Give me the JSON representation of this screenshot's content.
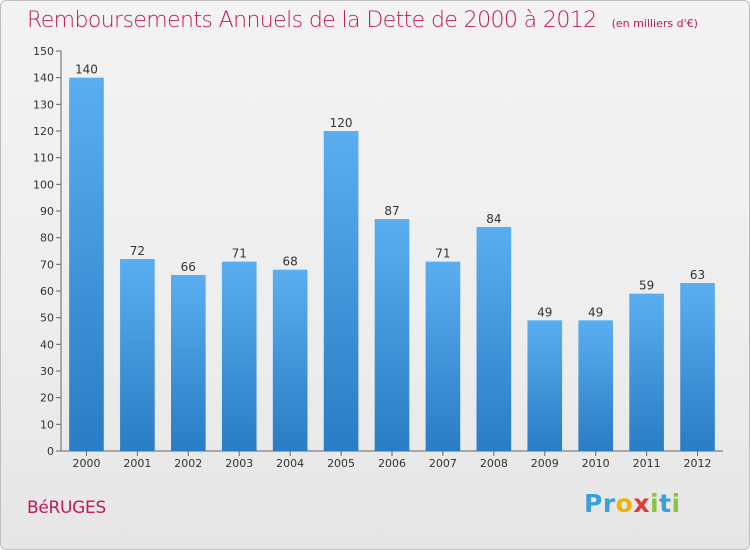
{
  "chart_data": {
    "type": "bar",
    "title": "Remboursements Annuels de la Dette de 2000 à 2012",
    "unit_note": "(en milliers d'€)",
    "categories": [
      "2000",
      "2001",
      "2002",
      "2003",
      "2004",
      "2005",
      "2006",
      "2007",
      "2008",
      "2009",
      "2010",
      "2011",
      "2012"
    ],
    "values": [
      140,
      72,
      66,
      71,
      68,
      120,
      87,
      71,
      84,
      49,
      49,
      59,
      63
    ],
    "data_labels": [
      "140",
      "72",
      "66",
      "71",
      "68",
      "120",
      "87",
      "71",
      "84",
      "49",
      "49",
      "59",
      "63"
    ],
    "ylim": [
      0,
      150
    ],
    "ytick_step": 10,
    "grid": false,
    "bar_color_top": "#5aaef0",
    "bar_color_bottom": "#2a7cc4"
  },
  "footer": {
    "place": "BéRUGES",
    "logo_text": "Proxiti",
    "logo_letters": [
      "P",
      "r",
      "o",
      "x",
      "i",
      "t",
      "i"
    ],
    "logo_colors": [
      "#3aa0dc",
      "#3aa0dc",
      "#f0b400",
      "#e03a3a",
      "#8bc53f",
      "#3aa0dc",
      "#8bc53f"
    ]
  }
}
